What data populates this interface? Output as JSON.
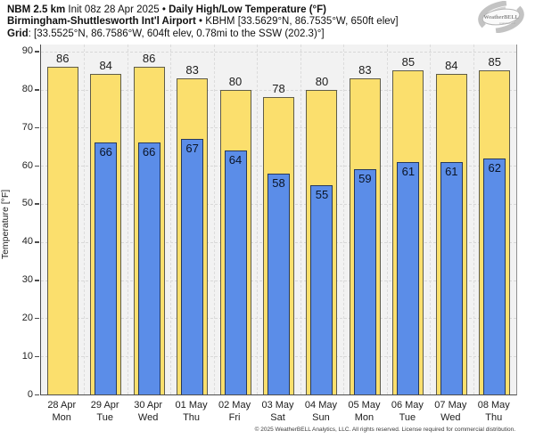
{
  "header": {
    "title_model": "NBM 2.5 km",
    "title_init": " Init 08z 28 Apr 2025 • ",
    "title_product": "Daily High/Low Temperature (°F)",
    "station_name": "Birmingham-Shuttlesworth Int'l Airport",
    "station_info": " • KBHM [33.5629°N, 86.7535°W, 650ft elev]",
    "grid_label": "Grid",
    "grid_info": ": [33.5525°N, 86.7586°W, 604ft elev, 0.78mi to the SSW (202.3)°]"
  },
  "logo": {
    "brand": "WeatherBELL",
    "sub": "Analytics LLC"
  },
  "chart_data": {
    "type": "bar",
    "title": "NBM 2.5 km Init 08z 28 Apr 2025 • Daily High/Low Temperature (°F)",
    "ylabel": "Temperature [°F]",
    "ylim": [
      0,
      90
    ],
    "ytick_step": 10,
    "grid": true,
    "plot_bg": "#f2f2f2",
    "categories": [
      {
        "date": "28 Apr",
        "day": "Mon"
      },
      {
        "date": "29 Apr",
        "day": "Tue"
      },
      {
        "date": "30 Apr",
        "day": "Wed"
      },
      {
        "date": "01 May",
        "day": "Thu"
      },
      {
        "date": "02 May",
        "day": "Fri"
      },
      {
        "date": "03 May",
        "day": "Sat"
      },
      {
        "date": "04 May",
        "day": "Sun"
      },
      {
        "date": "05 May",
        "day": "Mon"
      },
      {
        "date": "06 May",
        "day": "Tue"
      },
      {
        "date": "07 May",
        "day": "Wed"
      },
      {
        "date": "08 May",
        "day": "Thu"
      }
    ],
    "series": [
      {
        "name": "Daily High",
        "color": "#fbdf6d",
        "border": "#5f5c48",
        "values": [
          86,
          84,
          86,
          83,
          80,
          78,
          80,
          83,
          85,
          84,
          85
        ]
      },
      {
        "name": "Daily Low",
        "color": "#5b8de8",
        "border": "#27395c",
        "values": [
          null,
          66,
          66,
          67,
          64,
          58,
          55,
          59,
          61,
          61,
          62
        ]
      }
    ]
  },
  "footer": "© 2025 WeatherBELL Analytics, LLC. All rights reserved. License required for commercial distribution."
}
